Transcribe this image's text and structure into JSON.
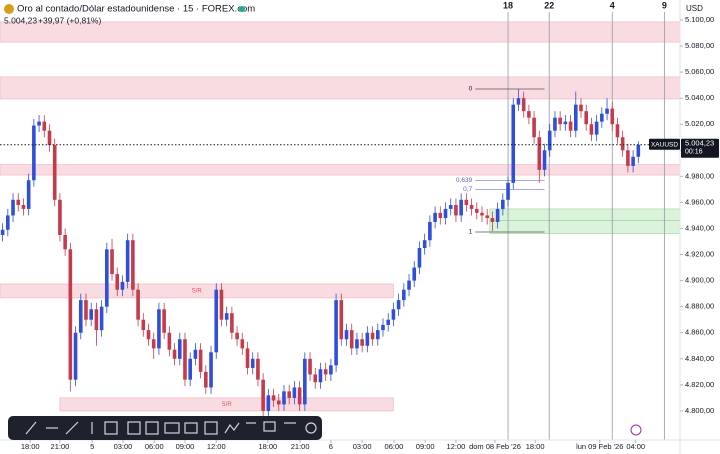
{
  "header": {
    "symbol": "Oro al contado/Dólar estadounidense · 15 · FOREX.com",
    "price": "5.004,23",
    "change": "+39,97 (+0,81%)"
  },
  "chart_data": {
    "type": "candlestick",
    "currency": "USD",
    "up_color": "#2f4fd8",
    "down_color": "#c43b4b",
    "xlim": [
      -0.5,
      130
    ],
    "ylim": [
      4777.7,
      5115.3
    ],
    "yticks": [
      {
        "value": 5100,
        "label": "5.100,00"
      },
      {
        "value": 5080,
        "label": "5.080,00"
      },
      {
        "value": 5060,
        "label": "5.060,00"
      },
      {
        "value": 5040,
        "label": "5.040,00"
      },
      {
        "value": 5020,
        "label": "5.020,00"
      },
      {
        "value": 5000,
        "label": "5.000,00"
      },
      {
        "value": 4980,
        "label": "4.980,00"
      },
      {
        "value": 4960,
        "label": "4.960,00"
      },
      {
        "value": 4940,
        "label": "4.940,00"
      },
      {
        "value": 4920,
        "label": "4.920,00"
      },
      {
        "value": 4900,
        "label": "4.900,00"
      },
      {
        "value": 4880,
        "label": "4.880,00"
      },
      {
        "value": 4860,
        "label": "4.860,00"
      },
      {
        "value": 4840,
        "label": "4.840,00"
      },
      {
        "value": 4820,
        "label": "4.820,00"
      },
      {
        "value": 4800,
        "label": "4.800,00"
      }
    ],
    "xticks": [
      {
        "value": 5.3,
        "label": "18:00"
      },
      {
        "value": 11,
        "label": "21:00"
      },
      {
        "value": 17.2,
        "label": "5"
      },
      {
        "value": 23.1,
        "label": "03:00"
      },
      {
        "value": 29.1,
        "label": "06:00"
      },
      {
        "value": 35,
        "label": "09:00"
      },
      {
        "value": 41,
        "label": "12:00"
      },
      {
        "value": 50.9,
        "label": "18:00"
      },
      {
        "value": 57.1,
        "label": "21:00"
      },
      {
        "value": 63,
        "label": "6"
      },
      {
        "value": 69,
        "label": "03:00"
      },
      {
        "value": 75.1,
        "label": "06:00"
      },
      {
        "value": 81.1,
        "label": "09:00"
      },
      {
        "value": 87,
        "label": "12:00"
      },
      {
        "value": 94.5,
        "label": "dom 08 Feb '26"
      },
      {
        "value": 102.2,
        "label": "18:00"
      },
      {
        "value": 114.6,
        "label": "lun 09 Feb '26"
      },
      {
        "value": 121.5,
        "label": "04:00"
      }
    ],
    "ohlc": [
      [
        4935,
        4944,
        4930,
        4939
      ],
      [
        4939,
        4955,
        4934,
        4950
      ],
      [
        4950,
        4967,
        4945,
        4962
      ],
      [
        4962,
        4967,
        4953,
        4958
      ],
      [
        4958,
        4963,
        4950,
        4955
      ],
      [
        4955,
        4982,
        4950,
        4977
      ],
      [
        4977,
        5024,
        4972,
        5019
      ],
      [
        5019,
        5027,
        5014,
        5022
      ],
      [
        5022,
        5027,
        5010,
        5015
      ],
      [
        5015,
        5020,
        4999,
        5004
      ],
      [
        5004,
        5009,
        4957,
        4962
      ],
      [
        4962,
        4967,
        4930,
        4935
      ],
      [
        4935,
        4940,
        4919,
        4924
      ],
      [
        4924,
        4929,
        4815,
        4824
      ],
      [
        4824,
        4865,
        4819,
        4860
      ],
      [
        4860,
        4890,
        4855,
        4885
      ],
      [
        4885,
        4890,
        4865,
        4870
      ],
      [
        4870,
        4883,
        4865,
        4878
      ],
      [
        4878,
        4883,
        4850,
        4862
      ],
      [
        4862,
        4885,
        4857,
        4880
      ],
      [
        4880,
        4929,
        4875,
        4924
      ],
      [
        4924,
        4932,
        4900,
        4905
      ],
      [
        4905,
        4910,
        4888,
        4893
      ],
      [
        4893,
        4904,
        4888,
        4899
      ],
      [
        4899,
        4936,
        4894,
        4931
      ],
      [
        4931,
        4936,
        4888,
        4893
      ],
      [
        4893,
        4898,
        4865,
        4870
      ],
      [
        4870,
        4875,
        4857,
        4862
      ],
      [
        4862,
        4867,
        4850,
        4855
      ],
      [
        4855,
        4860,
        4840,
        4848
      ],
      [
        4848,
        4883,
        4843,
        4878
      ],
      [
        4878,
        4883,
        4855,
        4860
      ],
      [
        4860,
        4865,
        4842,
        4847
      ],
      [
        4847,
        4852,
        4835,
        4840
      ],
      [
        4840,
        4860,
        4835,
        4855
      ],
      [
        4855,
        4860,
        4819,
        4824
      ],
      [
        4824,
        4845,
        4819,
        4840
      ],
      [
        4840,
        4852,
        4835,
        4847
      ],
      [
        4847,
        4852,
        4825,
        4830
      ],
      [
        4830,
        4835,
        4813,
        4818
      ],
      [
        4818,
        4850,
        4813,
        4845
      ],
      [
        4845,
        4898,
        4840,
        4893
      ],
      [
        4893,
        4898,
        4865,
        4870
      ],
      [
        4870,
        4880,
        4865,
        4875
      ],
      [
        4875,
        4880,
        4855,
        4860
      ],
      [
        4860,
        4865,
        4850,
        4855
      ],
      [
        4855,
        4860,
        4843,
        4848
      ],
      [
        4848,
        4853,
        4828,
        4833
      ],
      [
        4833,
        4845,
        4828,
        4840
      ],
      [
        4840,
        4845,
        4819,
        4824
      ],
      [
        4824,
        4829,
        4795,
        4800
      ],
      [
        4800,
        4817,
        4795,
        4812
      ],
      [
        4812,
        4817,
        4803,
        4808
      ],
      [
        4808,
        4813,
        4800,
        4805
      ],
      [
        4805,
        4820,
        4800,
        4815
      ],
      [
        4815,
        4820,
        4805,
        4810
      ],
      [
        4810,
        4823,
        4805,
        4818
      ],
      [
        4818,
        4823,
        4800,
        4805
      ],
      [
        4805,
        4845,
        4800,
        4840
      ],
      [
        4840,
        4845,
        4823,
        4828
      ],
      [
        4828,
        4833,
        4817,
        4822
      ],
      [
        4822,
        4837,
        4817,
        4832
      ],
      [
        4832,
        4837,
        4823,
        4828
      ],
      [
        4828,
        4840,
        4823,
        4835
      ],
      [
        4835,
        4890,
        4830,
        4885
      ],
      [
        4885,
        4890,
        4850,
        4855
      ],
      [
        4855,
        4867,
        4850,
        4862
      ],
      [
        4862,
        4867,
        4843,
        4848
      ],
      [
        4848,
        4860,
        4843,
        4855
      ],
      [
        4855,
        4860,
        4845,
        4850
      ],
      [
        4850,
        4865,
        4845,
        4860
      ],
      [
        4860,
        4865,
        4850,
        4855
      ],
      [
        4855,
        4867,
        4850,
        4862
      ],
      [
        4862,
        4871,
        4857,
        4866
      ],
      [
        4866,
        4875,
        4861,
        4870
      ],
      [
        4870,
        4883,
        4865,
        4878
      ],
      [
        4878,
        4890,
        4873,
        4885
      ],
      [
        4885,
        4898,
        4880,
        4893
      ],
      [
        4893,
        4905,
        4888,
        4900
      ],
      [
        4900,
        4915,
        4895,
        4910
      ],
      [
        4910,
        4930,
        4905,
        4925
      ],
      [
        4925,
        4936,
        4920,
        4931
      ],
      [
        4931,
        4950,
        4926,
        4945
      ],
      [
        4945,
        4957,
        4940,
        4952
      ],
      [
        4952,
        4957,
        4943,
        4948
      ],
      [
        4948,
        4960,
        4943,
        4955
      ],
      [
        4955,
        4963,
        4950,
        4958
      ],
      [
        4958,
        4963,
        4945,
        4950
      ],
      [
        4950,
        4967,
        4945,
        4962
      ],
      [
        4962,
        4967,
        4953,
        4958
      ],
      [
        4958,
        4963,
        4950,
        4955
      ],
      [
        4955,
        4960,
        4947,
        4952
      ],
      [
        4952,
        4957,
        4945,
        4950
      ],
      [
        4950,
        4955,
        4943,
        4948
      ],
      [
        4948,
        4953,
        4938,
        4945
      ],
      [
        4945,
        4960,
        4940,
        4955
      ],
      [
        4955,
        4967,
        4950,
        4962
      ],
      [
        4962,
        4980,
        4957,
        4975
      ],
      [
        4975,
        5040,
        4970,
        5035
      ],
      [
        5035,
        5047,
        5030,
        5040
      ],
      [
        5040,
        5045,
        5025,
        5030
      ],
      [
        5030,
        5035,
        5020,
        5025
      ],
      [
        5025,
        5030,
        5005,
        5010
      ],
      [
        5010,
        5015,
        4975,
        4985
      ],
      [
        4985,
        5005,
        4980,
        5000
      ],
      [
        5000,
        5020,
        4995,
        5015
      ],
      [
        5015,
        5030,
        5010,
        5025
      ],
      [
        5025,
        5030,
        5015,
        5020
      ],
      [
        5020,
        5027,
        5015,
        5022
      ],
      [
        5022,
        5027,
        5010,
        5015
      ],
      [
        5015,
        5045,
        5010,
        5035
      ],
      [
        5035,
        5040,
        5025,
        5030
      ],
      [
        5030,
        5035,
        5015,
        5020
      ],
      [
        5020,
        5025,
        5007,
        5012
      ],
      [
        5012,
        5027,
        5007,
        5022
      ],
      [
        5022,
        5033,
        5017,
        5028
      ],
      [
        5028,
        5040,
        5023,
        5032
      ],
      [
        5032,
        5037,
        5015,
        5020
      ],
      [
        5020,
        5025,
        5005,
        5010
      ],
      [
        5010,
        5015,
        4995,
        5000
      ],
      [
        5000,
        5005,
        4983,
        4988
      ],
      [
        4988,
        5000,
        4983,
        4995
      ],
      [
        4995,
        5007,
        4990,
        5004.23
      ]
    ],
    "zones": [
      {
        "price": [
          5083,
          5098.5
        ],
        "color": "#f8d7de"
      },
      {
        "price": [
          5039.4,
          5056.3
        ],
        "color": "#f8d7de"
      },
      {
        "price": [
          4981,
          4989
        ],
        "color": "#f8d7de"
      },
      {
        "price": [
          4886.7,
          4897.4
        ],
        "x": [
          -0.5,
          75
        ],
        "color": "#f8d7de",
        "label": "S/R"
      },
      {
        "price": [
          4800,
          4810
        ],
        "x": [
          11,
          75
        ],
        "color": "#f8d7de",
        "label": "S/R"
      },
      {
        "price": [
          4946,
          4955
        ],
        "x": [
          93.5,
          130
        ],
        "color": "#d5f0d5"
      },
      {
        "price": [
          4936,
          4946
        ],
        "x": [
          93.5,
          130
        ],
        "color": "#d5f0d5"
      }
    ],
    "vlines": [
      {
        "x": 97,
        "label": "18"
      },
      {
        "x": 104.9,
        "label": "22"
      },
      {
        "x": 117,
        "label": "4"
      },
      {
        "x": 127,
        "label": "9"
      }
    ],
    "fib": {
      "x": [
        90.7,
        104
      ],
      "levels": [
        {
          "price": 5047,
          "label": "0"
        },
        {
          "price": 4976.9,
          "label": "0,639"
        },
        {
          "price": 4970,
          "label": "0,7"
        },
        {
          "price": 4937.3,
          "label": "1"
        }
      ]
    },
    "last": {
      "symbol": "XAUUSD",
      "price": 5004.23,
      "price_label": "5.004,23",
      "countdown": "00:16"
    }
  }
}
